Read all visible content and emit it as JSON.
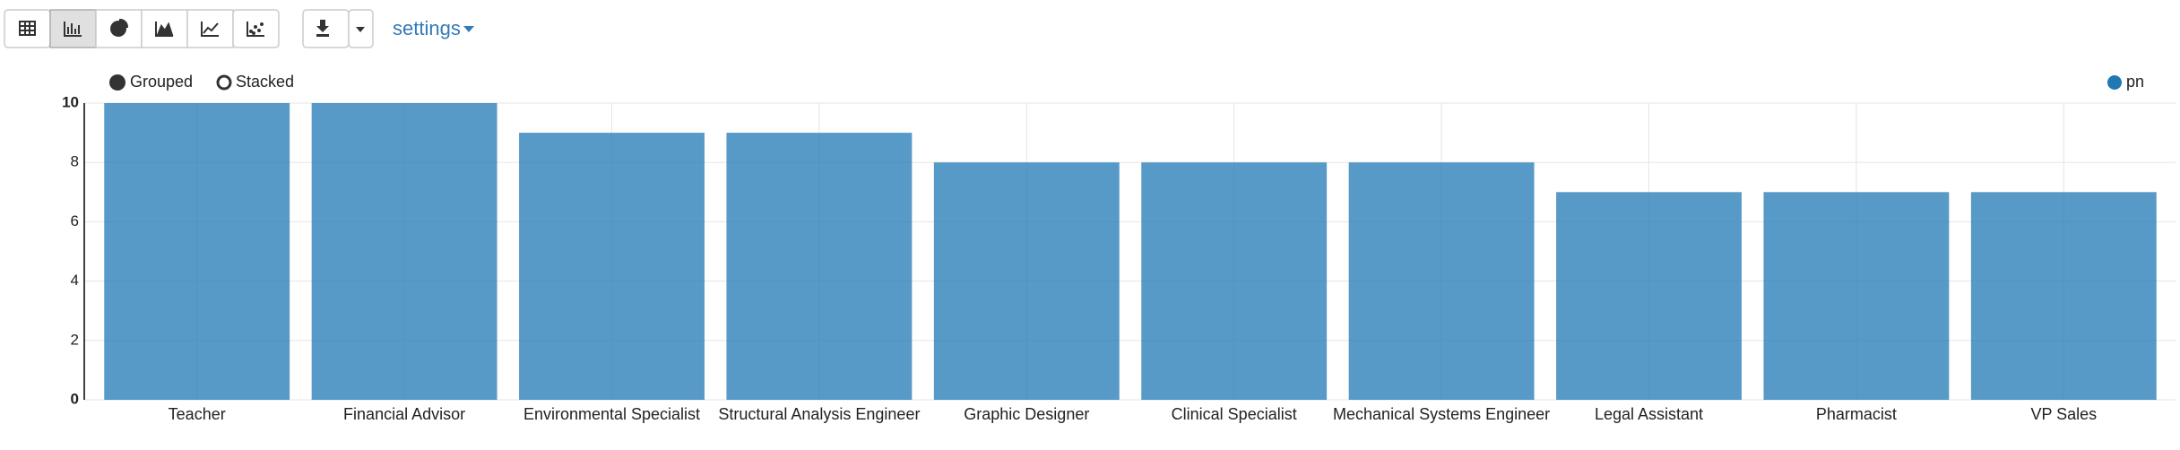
{
  "toolbar": {
    "settings": "settings"
  },
  "chart_controls": [
    "Grouped",
    "Stacked"
  ],
  "chart_data": {
    "type": "bar",
    "categories": [
      "Teacher",
      "Financial Advisor",
      "Environmental Specialist",
      "Structural Analysis Engineer",
      "Graphic Designer",
      "Clinical Specialist",
      "Mechanical Systems Engineer",
      "Legal Assistant",
      "Pharmacist",
      "VP Sales"
    ],
    "series": [
      {
        "name": "pn",
        "color": "#1f77b4",
        "values": [
          10,
          10,
          9,
          9,
          8,
          8,
          8,
          7,
          7,
          7
        ]
      }
    ],
    "ylim": [
      0,
      10
    ],
    "yticks": [
      0,
      2,
      4,
      6,
      8,
      10
    ],
    "grid": true,
    "legend": "top-right"
  }
}
